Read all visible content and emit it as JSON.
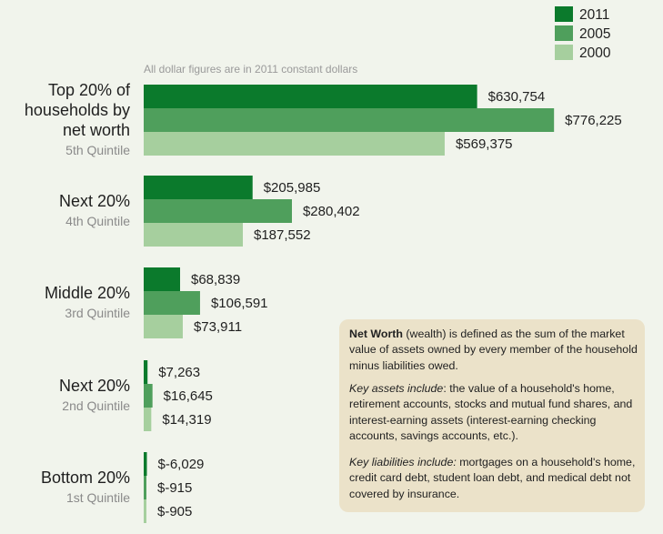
{
  "chart_data": {
    "type": "bar",
    "orientation": "horizontal",
    "subtitle": "All dollar figures are in 2011 constant dollars",
    "legend_position": "top-right",
    "series": [
      {
        "name": "2011",
        "color": "#0b7a2c",
        "values": [
          630754,
          205985,
          68839,
          7263,
          -6029
        ],
        "labels": [
          "$630,754",
          "$205,985",
          "$68,839",
          "$7,263",
          "$-6,029"
        ]
      },
      {
        "name": "2005",
        "color": "#4f9f5c",
        "values": [
          776225,
          280402,
          106591,
          16645,
          -915
        ],
        "labels": [
          "$776,225",
          "$280,402",
          "$106,591",
          "$16,645",
          "$-915"
        ]
      },
      {
        "name": "2000",
        "color": "#a6cf9e",
        "values": [
          569375,
          187552,
          73911,
          14319,
          -905
        ],
        "labels": [
          "$569,375",
          "$187,552",
          "$73,911",
          "$14,319",
          "$-905"
        ]
      }
    ],
    "categories": [
      {
        "label_lines": [
          "Top 20% of",
          "households by",
          "net worth"
        ],
        "sublabel": "5th Quintile"
      },
      {
        "label_lines": [
          "Next 20%"
        ],
        "sublabel": "4th Quintile"
      },
      {
        "label_lines": [
          "Middle 20%"
        ],
        "sublabel": "3rd Quintile"
      },
      {
        "label_lines": [
          "Next 20%"
        ],
        "sublabel": "2nd Quintile"
      },
      {
        "label_lines": [
          "Bottom 20%"
        ],
        "sublabel": "1st Quintile"
      }
    ],
    "xlim": [
      0,
      800000
    ]
  },
  "note": {
    "p1_bold": "Net Worth",
    "p1_text": " (wealth) is defined as the sum of the market value of assets owned by every member of the household minus liabilities owed.",
    "p2_italic": "Key assets include",
    "p2_text": ": the value of a household's home, retirement accounts, stocks and mutual fund shares, and interest-earning assets (interest-earning checking accounts, savings accounts, etc.).",
    "p3_italic": "Key liabilities include:",
    "p3_text": " mortgages on a household's home, credit card debt, student loan debt, and medical debt not covered by insurance."
  }
}
